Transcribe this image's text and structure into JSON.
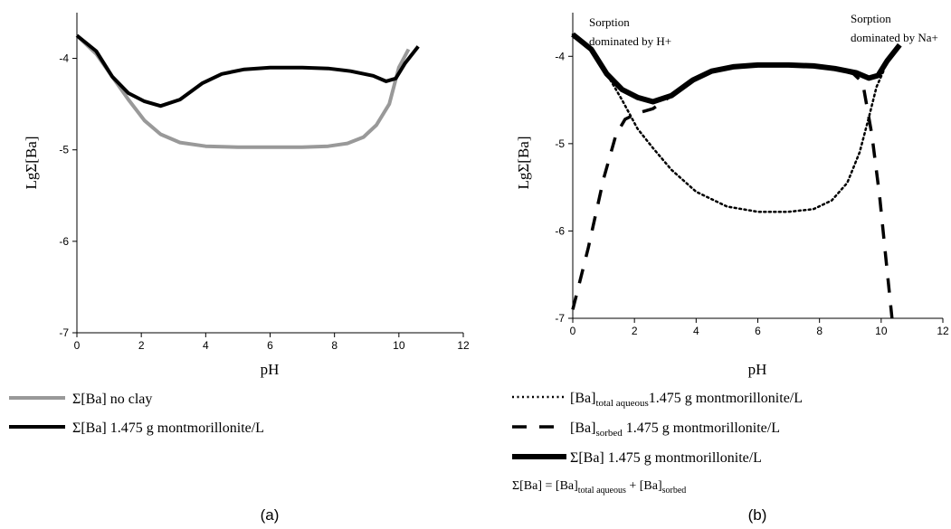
{
  "chart_data": [
    {
      "panel": "(a)",
      "type": "line",
      "xlabel": "pH",
      "ylabel": "LgΣ[Ba]",
      "xlim": [
        0,
        12
      ],
      "ylim": [
        -7,
        -3.5
      ],
      "xticks": [
        "0",
        "2",
        "4",
        "6",
        "8",
        "10",
        "12"
      ],
      "yticks": [
        "-4",
        "-5",
        "-6",
        "-7"
      ],
      "grid": false,
      "legend_position": "bottom",
      "series": [
        {
          "name": "Σ[Ba] no clay",
          "color": "#999999",
          "style": "solid",
          "x": [
            0,
            0.6,
            1.1,
            1.6,
            2.1,
            2.6,
            3.2,
            4.0,
            5.0,
            6.0,
            7.0,
            7.8,
            8.4,
            8.9,
            9.3,
            9.7,
            10.0,
            10.3
          ],
          "y": [
            -3.75,
            -3.95,
            -4.2,
            -4.45,
            -4.68,
            -4.83,
            -4.92,
            -4.96,
            -4.97,
            -4.97,
            -4.97,
            -4.96,
            -4.93,
            -4.86,
            -4.73,
            -4.5,
            -4.1,
            -3.9
          ]
        },
        {
          "name": "Σ[Ba] 1.475 g montmorillonite/L",
          "color": "#000000",
          "style": "solid",
          "x": [
            0,
            0.6,
            1.1,
            1.6,
            2.1,
            2.6,
            3.2,
            3.9,
            4.5,
            5.2,
            6.0,
            7.0,
            7.8,
            8.5,
            9.2,
            9.6,
            9.9,
            10.2,
            10.6
          ],
          "y": [
            -3.75,
            -3.92,
            -4.2,
            -4.38,
            -4.47,
            -4.52,
            -4.45,
            -4.27,
            -4.17,
            -4.12,
            -4.1,
            -4.1,
            -4.11,
            -4.14,
            -4.19,
            -4.25,
            -4.22,
            -4.05,
            -3.87
          ]
        }
      ],
      "legend": {
        "no_clay": "Σ[Ba] no clay",
        "montmorillonite": "Σ[Ba] 1.475 g montmorillonite/L"
      },
      "caption": "(a)"
    },
    {
      "panel": "(b)",
      "type": "line",
      "xlabel": "pH",
      "ylabel": "LgΣ[Ba]",
      "xlim": [
        0,
        12
      ],
      "ylim": [
        -7,
        -3.5
      ],
      "xticks": [
        "0",
        "2",
        "4",
        "6",
        "8",
        "10",
        "12"
      ],
      "yticks": [
        "-4",
        "-5",
        "-6",
        "-7"
      ],
      "grid": false,
      "legend_position": "bottom",
      "annotations": [
        {
          "line1": "Sorption",
          "line2": "dominated by H+"
        },
        {
          "line1": "Sorption",
          "line2": "dominated by Na+"
        }
      ],
      "series": [
        {
          "name": "[Ba]total aqueous 1.475 g montmorillonite/L",
          "color": "#000000",
          "style": "dotted",
          "x": [
            0,
            0.6,
            1.1,
            1.6,
            2.1,
            2.6,
            3.2,
            4.0,
            5.0,
            6.0,
            7.0,
            7.8,
            8.4,
            8.9,
            9.3,
            9.6,
            9.85,
            10.1
          ],
          "y": [
            -3.75,
            -3.92,
            -4.2,
            -4.5,
            -4.83,
            -5.05,
            -5.3,
            -5.55,
            -5.72,
            -5.78,
            -5.78,
            -5.75,
            -5.65,
            -5.45,
            -5.1,
            -4.7,
            -4.35,
            -4.15
          ]
        },
        {
          "name": "[Ba]sorbed 1.475 g montmorillonite/L",
          "color": "#000000",
          "style": "dashed",
          "x": [
            0,
            0.5,
            1.0,
            1.4,
            1.7,
            2.1,
            2.6,
            3.2,
            3.9,
            4.5,
            5.2,
            6.0,
            7.0,
            7.8,
            8.5,
            9.1,
            9.4,
            9.7,
            9.95,
            10.15,
            10.35
          ],
          "y": [
            -6.9,
            -6.2,
            -5.4,
            -4.9,
            -4.72,
            -4.65,
            -4.6,
            -4.45,
            -4.27,
            -4.17,
            -4.12,
            -4.1,
            -4.1,
            -4.11,
            -4.14,
            -4.2,
            -4.3,
            -4.9,
            -5.6,
            -6.3,
            -7.0
          ]
        },
        {
          "name": "Σ[Ba] 1.475 g montmorillonite/L",
          "color": "#000000",
          "style": "thick",
          "x": [
            0,
            0.6,
            1.1,
            1.6,
            2.1,
            2.6,
            3.2,
            3.9,
            4.5,
            5.2,
            6.0,
            7.0,
            7.8,
            8.5,
            9.2,
            9.6,
            9.9,
            10.2,
            10.6
          ],
          "y": [
            -3.75,
            -3.92,
            -4.2,
            -4.38,
            -4.47,
            -4.52,
            -4.45,
            -4.27,
            -4.17,
            -4.12,
            -4.1,
            -4.1,
            -4.11,
            -4.14,
            -4.19,
            -4.25,
            -4.22,
            -4.05,
            -3.87
          ]
        }
      ],
      "legend": {
        "aqueous_pre": "[Ba]",
        "aqueous_sub": "total aqueous",
        "aqueous_post": "1.475 g montmorillonite/L",
        "sorbed_pre": "[Ba]",
        "sorbed_sub": "sorbed",
        "sorbed_post": " 1.475 g montmorillonite/L",
        "sum": "Σ[Ba] 1.475 g montmorillonite/L",
        "eq_a": "Σ[Ba] = [Ba]",
        "eq_sub1": "total aqueous",
        "eq_b": " + [Ba]",
        "eq_sub2": "sorbed"
      },
      "caption": "(b)"
    }
  ]
}
